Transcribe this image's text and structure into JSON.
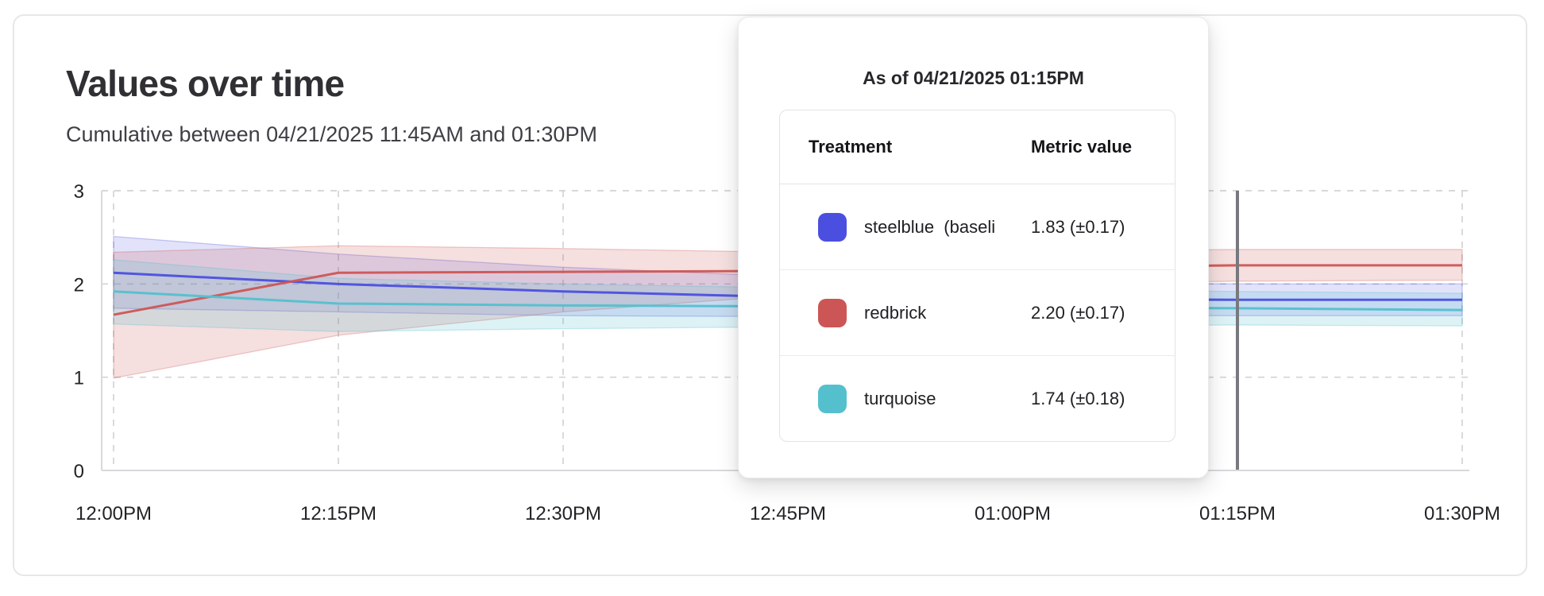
{
  "header": {
    "title": "Values over time",
    "subtitle": "Cumulative between 04/21/2025 11:45AM and 01:30PM"
  },
  "tooltip": {
    "as_of": "As of 04/21/2025 01:15PM",
    "columns": {
      "treatment": "Treatment",
      "metric": "Metric value"
    },
    "rows": [
      {
        "label": "steelblue  (baseli",
        "value": "1.83 (±0.17)",
        "color": "#4b4fdf"
      },
      {
        "label": "redbrick",
        "value": "2.20 (±0.17)",
        "color": "#cc5655"
      },
      {
        "label": "turquoise",
        "value": "1.74 (±0.18)",
        "color": "#54c0cd"
      }
    ]
  },
  "chart_data": {
    "type": "line",
    "title": "Values over time",
    "subtitle": "Cumulative between 04/21/2025 11:45AM and 01:30PM",
    "x_tick_labels": [
      "12:00PM",
      "12:15PM",
      "12:30PM",
      "12:45PM",
      "01:00PM",
      "01:15PM",
      "01:30PM"
    ],
    "x_minutes": [
      0,
      15,
      30,
      45,
      60,
      75,
      90
    ],
    "x_max": 90,
    "y_ticks": [
      0,
      1,
      2,
      3
    ],
    "ylim": [
      0,
      3
    ],
    "grid": "dashed",
    "marker_minutes": 75,
    "marker_label": "01:15PM",
    "marker_color": "#77797e",
    "series": [
      {
        "name": "steelblue (baseline)",
        "color": "#4b4fdf",
        "values": [
          2.12,
          2.0,
          1.92,
          1.86,
          1.84,
          1.83,
          1.83
        ],
        "lower": [
          1.74,
          1.7,
          1.66,
          1.65,
          1.66,
          1.66,
          1.66
        ],
        "upper": [
          2.51,
          2.32,
          2.18,
          2.08,
          2.02,
          2.0,
          2.0
        ]
      },
      {
        "name": "redbrick",
        "color": "#cc5655",
        "values": [
          1.67,
          2.12,
          2.13,
          2.14,
          2.17,
          2.2,
          2.2
        ],
        "lower": [
          0.99,
          1.45,
          1.7,
          1.88,
          1.99,
          2.03,
          2.04
        ],
        "upper": [
          2.34,
          2.41,
          2.38,
          2.34,
          2.35,
          2.37,
          2.37
        ]
      },
      {
        "name": "turquoise",
        "color": "#54c0cd",
        "values": [
          1.92,
          1.79,
          1.77,
          1.76,
          1.75,
          1.74,
          1.72
        ],
        "lower": [
          1.57,
          1.49,
          1.52,
          1.54,
          1.55,
          1.56,
          1.55
        ],
        "upper": [
          2.26,
          2.06,
          2.0,
          1.96,
          1.94,
          1.92,
          1.9
        ]
      }
    ]
  }
}
